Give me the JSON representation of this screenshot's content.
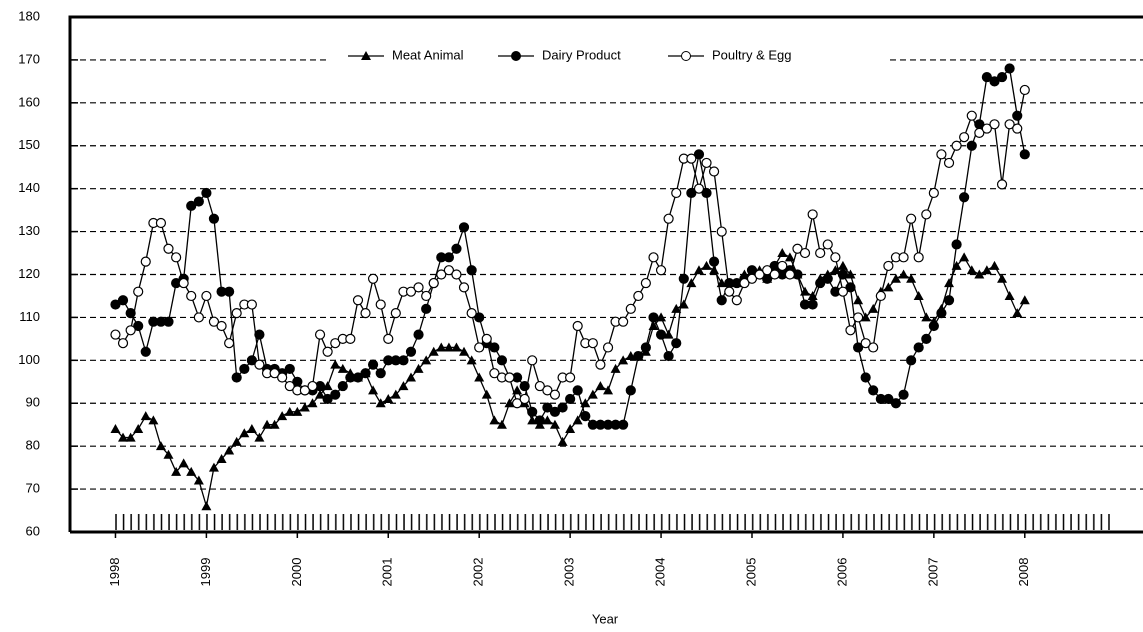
{
  "chart_data": {
    "type": "line",
    "x_label": "Year",
    "x": [
      1998,
      1998.083,
      1998.167,
      1998.25,
      1998.333,
      1998.417,
      1998.5,
      1998.583,
      1998.667,
      1998.75,
      1998.833,
      1998.917,
      1999,
      1999.083,
      1999.167,
      1999.25,
      1999.333,
      1999.417,
      1999.5,
      1999.583,
      1999.667,
      1999.75,
      1999.833,
      1999.917,
      2000,
      2000.083,
      2000.167,
      2000.25,
      2000.333,
      2000.417,
      2000.5,
      2000.583,
      2000.667,
      2000.75,
      2000.833,
      2000.917,
      2001,
      2001.083,
      2001.167,
      2001.25,
      2001.333,
      2001.417,
      2001.5,
      2001.583,
      2001.667,
      2001.75,
      2001.833,
      2001.917,
      2002,
      2002.083,
      2002.167,
      2002.25,
      2002.333,
      2002.417,
      2002.5,
      2002.583,
      2002.667,
      2002.75,
      2002.833,
      2002.917,
      2003,
      2003.083,
      2003.167,
      2003.25,
      2003.333,
      2003.417,
      2003.5,
      2003.583,
      2003.667,
      2003.75,
      2003.833,
      2003.917,
      2004,
      2004.083,
      2004.167,
      2004.25,
      2004.333,
      2004.417,
      2004.5,
      2004.583,
      2004.667,
      2004.75,
      2004.833,
      2004.917,
      2005,
      2005.083,
      2005.167,
      2005.25,
      2005.333,
      2005.417,
      2005.5,
      2005.583,
      2005.667,
      2005.75,
      2005.833,
      2005.917,
      2006,
      2006.083,
      2006.167,
      2006.25,
      2006.333,
      2006.417,
      2006.5,
      2006.583,
      2006.667,
      2006.75,
      2006.833,
      2006.917,
      2007,
      2007.083,
      2007.167,
      2007.25,
      2007.333,
      2007.417,
      2007.5,
      2007.583,
      2007.667,
      2007.75,
      2007.833,
      2007.917,
      2008
    ],
    "series": [
      {
        "name": "Meat Animal",
        "marker": "triangle",
        "color": "#000000",
        "values": [
          84,
          82,
          82,
          84,
          87,
          86,
          80,
          78,
          74,
          76,
          74,
          72,
          66,
          75,
          77,
          79,
          81,
          83,
          84,
          82,
          85,
          85,
          87,
          88,
          88,
          89,
          90,
          92,
          94,
          99,
          98,
          97,
          96,
          97,
          93,
          90,
          91,
          92,
          94,
          96,
          98,
          100,
          102,
          103,
          103,
          103,
          102,
          100,
          96,
          92,
          86,
          85,
          90,
          93,
          90,
          86,
          85,
          86,
          85,
          81,
          84,
          86,
          90,
          92,
          94,
          93,
          98,
          100,
          101,
          101,
          102,
          108,
          110,
          106,
          112,
          113,
          118,
          121,
          122,
          121,
          118,
          117,
          118,
          120,
          120,
          121,
          119,
          122,
          125,
          124,
          120,
          116,
          115,
          119,
          120,
          121,
          122,
          120,
          114,
          110,
          112,
          116,
          117,
          119,
          120,
          119,
          115,
          110,
          109,
          112,
          118,
          122,
          124,
          121,
          120,
          121,
          122,
          119,
          115,
          111,
          114
        ]
      },
      {
        "name": "Dairy Product",
        "marker": "filled-circle",
        "color": "#000000",
        "values": [
          113,
          114,
          111,
          108,
          102,
          109,
          109,
          109,
          118,
          119,
          136,
          137,
          139,
          133,
          116,
          116,
          96,
          98,
          100,
          106,
          98,
          98,
          97,
          98,
          95,
          93,
          93,
          94,
          91,
          92,
          94,
          96,
          96,
          97,
          99,
          97,
          100,
          100,
          100,
          102,
          106,
          112,
          118,
          124,
          124,
          126,
          131,
          121,
          110,
          104,
          103,
          100,
          96,
          96,
          94,
          88,
          86,
          89,
          88,
          89,
          91,
          93,
          87,
          85,
          85,
          85,
          85,
          85,
          93,
          101,
          103,
          110,
          106,
          101,
          104,
          119,
          139,
          148,
          139,
          123,
          114,
          118,
          118,
          119,
          121,
          120,
          119,
          122,
          120,
          121,
          120,
          113,
          113,
          118,
          119,
          116,
          120,
          117,
          103,
          96,
          93,
          91,
          91,
          90,
          92,
          100,
          103,
          105,
          108,
          111,
          114,
          127,
          138,
          150,
          155,
          166,
          165,
          166,
          168,
          157,
          148
        ]
      },
      {
        "name": "Poultry & Egg",
        "marker": "open-circle",
        "color": "#000000",
        "values": [
          106,
          104,
          107,
          116,
          123,
          132,
          132,
          126,
          124,
          118,
          115,
          110,
          115,
          109,
          108,
          104,
          111,
          113,
          113,
          99,
          97,
          97,
          96,
          94,
          93,
          93,
          94,
          106,
          102,
          104,
          105,
          105,
          114,
          111,
          119,
          113,
          105,
          111,
          116,
          116,
          117,
          115,
          118,
          120,
          121,
          120,
          117,
          111,
          103,
          105,
          97,
          96,
          96,
          90,
          91,
          100,
          94,
          93,
          92,
          96,
          96,
          108,
          104,
          104,
          99,
          103,
          109,
          109,
          112,
          115,
          118,
          124,
          121,
          133,
          139,
          147,
          147,
          140,
          146,
          144,
          130,
          116,
          114,
          118,
          119,
          120,
          121,
          120,
          122,
          120,
          126,
          125,
          134,
          125,
          127,
          124,
          116,
          107,
          110,
          104,
          103,
          115,
          122,
          124,
          124,
          133,
          124,
          134,
          139,
          148,
          146,
          150,
          152,
          157,
          153,
          154,
          155,
          141,
          155,
          154,
          163
        ]
      }
    ],
    "xlim": [
      1997.5,
      2009.3
    ],
    "xticks": [
      1998,
      1999,
      2000,
      2001,
      2002,
      2003,
      2004,
      2005,
      2006,
      2007,
      2008
    ],
    "ylim": [
      60,
      180
    ],
    "yticks": [
      60,
      70,
      80,
      90,
      100,
      110,
      120,
      130,
      140,
      150,
      160,
      170,
      180
    ],
    "grid": true,
    "legend": "top"
  }
}
